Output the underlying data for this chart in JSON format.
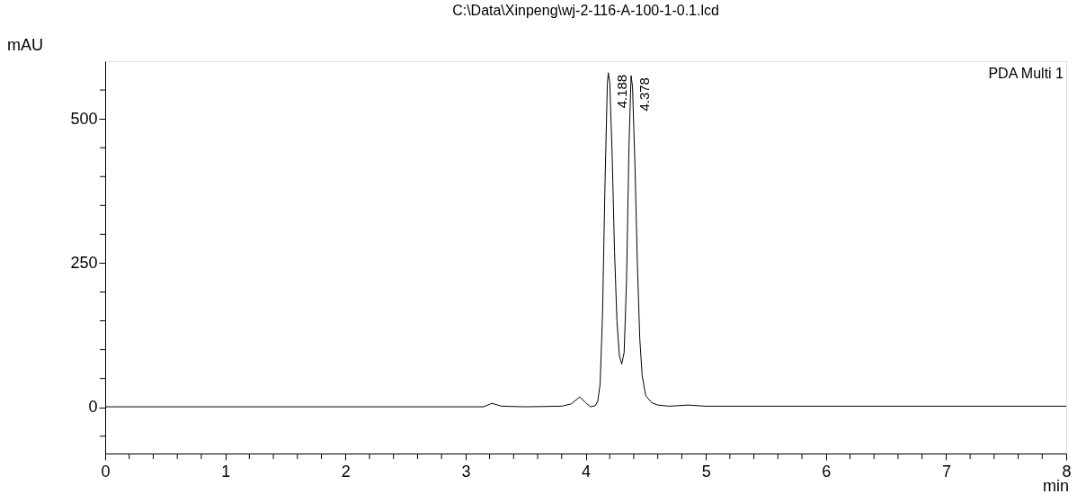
{
  "chart_data": {
    "type": "line",
    "title": "C:\\Data\\Xinpeng\\wj-2-116-A-100-1-0.1.lcd",
    "xlabel": "min",
    "ylabel": "mAU",
    "xlim": [
      0,
      8
    ],
    "ylim": [
      -80,
      600
    ],
    "xticks": [
      0,
      {
        "value": 0.2,
        "label": null
      },
      {
        "value": 0.4,
        "label": null
      },
      {
        "value": 0.6,
        "label": null
      },
      {
        "value": 0.8,
        "label": null
      },
      1,
      {
        "value": 1.2,
        "label": null
      },
      {
        "value": 1.4,
        "label": null
      },
      {
        "value": 1.6,
        "label": null
      },
      {
        "value": 1.8,
        "label": null
      },
      2,
      {
        "value": 2.2,
        "label": null
      },
      {
        "value": 2.4,
        "label": null
      },
      {
        "value": 2.6,
        "label": null
      },
      {
        "value": 2.8,
        "label": null
      },
      3,
      {
        "value": 3.2,
        "label": null
      },
      {
        "value": 3.4,
        "label": null
      },
      {
        "value": 3.6,
        "label": null
      },
      {
        "value": 3.8,
        "label": null
      },
      4,
      {
        "value": 4.2,
        "label": null
      },
      {
        "value": 4.4,
        "label": null
      },
      {
        "value": 4.6,
        "label": null
      },
      {
        "value": 4.8,
        "label": null
      },
      5,
      {
        "value": 5.2,
        "label": null
      },
      {
        "value": 5.4,
        "label": null
      },
      {
        "value": 5.6,
        "label": null
      },
      {
        "value": 5.8,
        "label": null
      },
      6,
      {
        "value": 6.2,
        "label": null
      },
      {
        "value": 6.4,
        "label": null
      },
      {
        "value": 6.6,
        "label": null
      },
      {
        "value": 6.8,
        "label": null
      },
      7,
      {
        "value": 7.2,
        "label": null
      },
      {
        "value": 7.4,
        "label": null
      },
      {
        "value": 7.6,
        "label": null
      },
      {
        "value": 7.8,
        "label": null
      },
      8
    ],
    "yticks": [
      {
        "value": -50,
        "label": null
      },
      0,
      {
        "value": 50,
        "label": null
      },
      {
        "value": 100,
        "label": null
      },
      {
        "value": 150,
        "label": null
      },
      {
        "value": 200,
        "label": null
      },
      250,
      {
        "value": 300,
        "label": null
      },
      {
        "value": 350,
        "label": null
      },
      {
        "value": 400,
        "label": null
      },
      {
        "value": 450,
        "label": null
      },
      500,
      {
        "value": 550,
        "label": null
      }
    ],
    "grid": false,
    "marker": "none",
    "line_style": "solid",
    "series": [
      {
        "name": "PDA Multi 1",
        "color": "#000000",
        "x": [
          0,
          0.5,
          1,
          1.5,
          2,
          2.5,
          3,
          3.15,
          3.22,
          3.3,
          3.5,
          3.8,
          3.88,
          3.95,
          4.0,
          4.04,
          4.08,
          4.1,
          4.12,
          4.14,
          4.16,
          4.18,
          4.188,
          4.2,
          4.22,
          4.24,
          4.26,
          4.28,
          4.3,
          4.32,
          4.34,
          4.36,
          4.378,
          4.39,
          4.41,
          4.43,
          4.45,
          4.47,
          4.5,
          4.55,
          4.6,
          4.7,
          4.85,
          5,
          6,
          7,
          8
        ],
        "values": [
          1,
          1,
          1,
          1,
          1,
          1,
          1,
          1,
          7,
          2,
          1,
          2,
          6,
          18,
          8,
          1,
          3,
          10,
          40,
          160,
          380,
          560,
          580,
          565,
          440,
          270,
          150,
          90,
          75,
          95,
          220,
          450,
          575,
          555,
          420,
          250,
          120,
          55,
          20,
          8,
          4,
          2,
          4,
          2,
          2,
          2,
          2
        ]
      }
    ],
    "annotations": [
      {
        "text": "4.188",
        "x": 4.188,
        "y": 580
      },
      {
        "text": "4.378",
        "x": 4.378,
        "y": 575
      }
    ]
  }
}
